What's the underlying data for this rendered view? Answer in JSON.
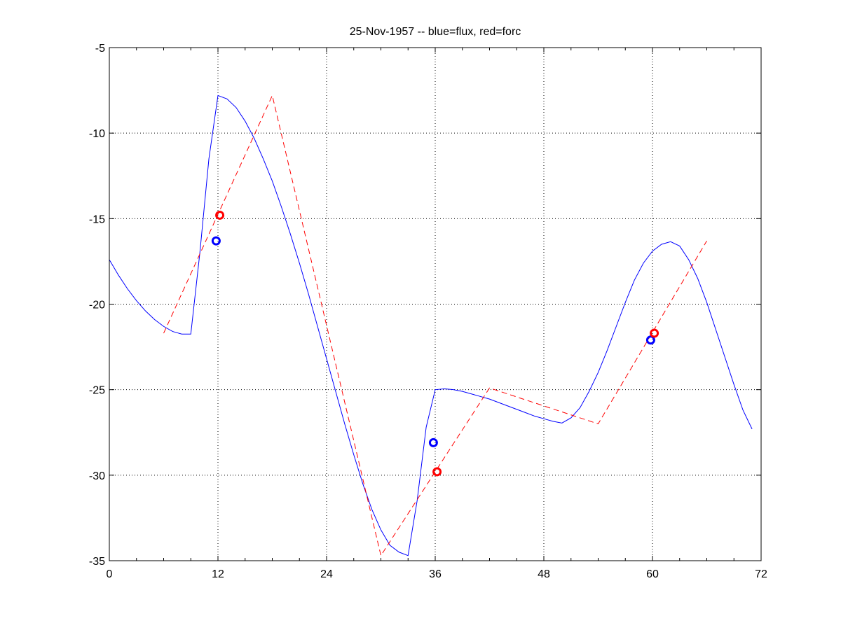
{
  "chart_data": {
    "type": "line",
    "title": "25-Nov-1957 -- blue=flux, red=forc",
    "xlabel": "",
    "ylabel": "",
    "xlim": [
      0,
      72
    ],
    "ylim": [
      -35,
      -5
    ],
    "xticks": [
      0,
      12,
      24,
      36,
      48,
      60,
      72
    ],
    "yticks": [
      -5,
      -10,
      -15,
      -20,
      -25,
      -30,
      -35
    ],
    "grid": true,
    "legend": "none",
    "series": [
      {
        "color": "#0000ff",
        "style": "solid",
        "points": [
          [
            0,
            -17.4
          ],
          [
            1,
            -18.3
          ],
          [
            2,
            -19.1
          ],
          [
            3,
            -19.8
          ],
          [
            4,
            -20.4
          ],
          [
            5,
            -20.9
          ],
          [
            6,
            -21.3
          ],
          [
            7,
            -21.6
          ],
          [
            8,
            -21.75
          ],
          [
            9,
            -21.75
          ],
          [
            10,
            -17.0
          ],
          [
            11,
            -11.5
          ],
          [
            12,
            -7.8
          ],
          [
            13,
            -8.0
          ],
          [
            14,
            -8.5
          ],
          [
            15,
            -9.3
          ],
          [
            16,
            -10.3
          ],
          [
            17,
            -11.5
          ],
          [
            18,
            -12.8
          ],
          [
            19,
            -14.3
          ],
          [
            20,
            -15.9
          ],
          [
            21,
            -17.6
          ],
          [
            22,
            -19.4
          ],
          [
            23,
            -21.3
          ],
          [
            24,
            -23.2
          ],
          [
            25,
            -25.1
          ],
          [
            26,
            -27.0
          ],
          [
            27,
            -28.8
          ],
          [
            28,
            -30.5
          ],
          [
            29,
            -32.0
          ],
          [
            30,
            -33.2
          ],
          [
            31,
            -34.1
          ],
          [
            32,
            -34.5
          ],
          [
            33,
            -34.7
          ],
          [
            34,
            -31.5
          ],
          [
            35,
            -27.2
          ],
          [
            36,
            -25.0
          ],
          [
            37,
            -24.95
          ],
          [
            38,
            -25.0
          ],
          [
            39,
            -25.1
          ],
          [
            40,
            -25.25
          ],
          [
            41,
            -25.4
          ],
          [
            42,
            -25.55
          ],
          [
            43,
            -25.75
          ],
          [
            44,
            -25.95
          ],
          [
            45,
            -26.15
          ],
          [
            46,
            -26.35
          ],
          [
            47,
            -26.55
          ],
          [
            48,
            -26.7
          ],
          [
            49,
            -26.85
          ],
          [
            50,
            -26.95
          ],
          [
            51,
            -26.65
          ],
          [
            52,
            -26.05
          ],
          [
            53,
            -25.1
          ],
          [
            54,
            -24.0
          ],
          [
            55,
            -22.7
          ],
          [
            56,
            -21.3
          ],
          [
            57,
            -19.9
          ],
          [
            58,
            -18.6
          ],
          [
            59,
            -17.6
          ],
          [
            60,
            -16.9
          ],
          [
            61,
            -16.5
          ],
          [
            62,
            -16.35
          ],
          [
            63,
            -16.6
          ],
          [
            64,
            -17.4
          ],
          [
            65,
            -18.5
          ],
          [
            66,
            -19.9
          ],
          [
            67,
            -21.5
          ],
          [
            68,
            -23.1
          ],
          [
            69,
            -24.7
          ],
          [
            70,
            -26.2
          ],
          [
            71,
            -27.3
          ]
        ]
      },
      {
        "color": "#ff0000",
        "style": "dashed",
        "points": [
          [
            6,
            -21.7
          ],
          [
            18,
            -7.8
          ],
          [
            30,
            -34.7
          ],
          [
            42,
            -24.9
          ],
          [
            54,
            -27.0
          ],
          [
            66,
            -16.3
          ]
        ]
      }
    ],
    "markers": [
      {
        "color": "#0000ff",
        "x": 11.8,
        "y": -16.3
      },
      {
        "color": "#ff0000",
        "x": 12.2,
        "y": -14.8
      },
      {
        "color": "#0000ff",
        "x": 35.8,
        "y": -28.1
      },
      {
        "color": "#ff0000",
        "x": 36.2,
        "y": -29.8
      },
      {
        "color": "#0000ff",
        "x": 59.8,
        "y": -22.1
      },
      {
        "color": "#ff0000",
        "x": 60.2,
        "y": -21.7
      }
    ]
  }
}
